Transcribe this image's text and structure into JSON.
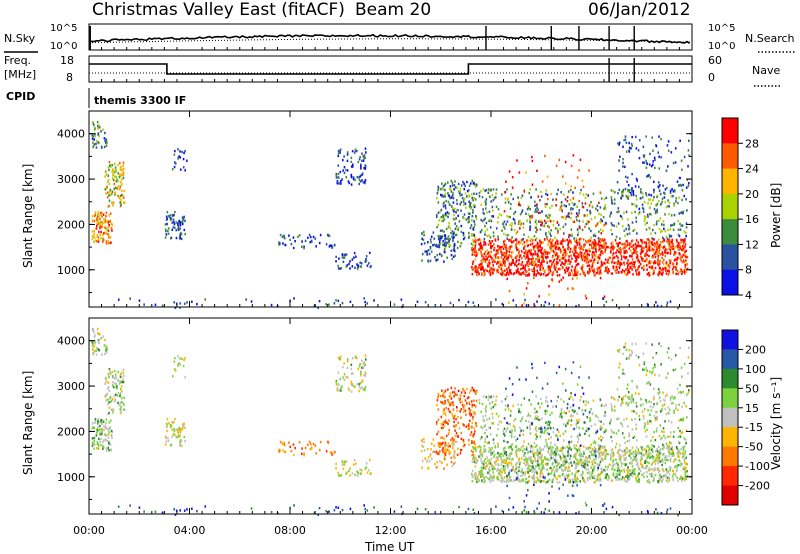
{
  "header": {
    "station": "Christmas Valley East (fitACF)",
    "beam": "Beam 20",
    "date": "06/Jan/2012"
  },
  "top_panels": {
    "nsky_label": "N.Sky",
    "nsky_ticks": [
      "10^5",
      "10^0"
    ],
    "nsearch_label": "N.Search",
    "nsearch_ticks": [
      "10^5",
      "10^0"
    ],
    "freq_label": "Freq.",
    "freq_unit": "[MHz]",
    "freq_ticks": [
      "18",
      "8"
    ],
    "nave_label": "Nave",
    "nave_ticks": [
      "60",
      "0"
    ],
    "cpid_label": "CPID",
    "cpid_value": "themis 3300 IF",
    "freq_steps": [
      {
        "t0": 0,
        "t1": 3.1,
        "mhz": 15.5
      },
      {
        "t0": 3.1,
        "t1": 15.1,
        "mhz": 10.5
      },
      {
        "t0": 15.1,
        "t1": 24,
        "mhz": 15.5
      }
    ]
  },
  "chart_data": [
    {
      "type": "heatmap",
      "title": "Power",
      "ylabel": "Slant Range [km]",
      "xlabel": "Time UT",
      "x_ticks": [
        "00:00",
        "04:00",
        "08:00",
        "12:00",
        "16:00",
        "20:00",
        "00:00"
      ],
      "y_ticks": [
        "1000",
        "2000",
        "3000",
        "4000"
      ],
      "xlim": [
        0,
        24
      ],
      "ylim": [
        180,
        4500
      ],
      "colorbar_label": "Power [dB]",
      "colorbar_ticks": [
        "28",
        "24",
        "20",
        "16",
        "12",
        "8",
        "4"
      ],
      "colorbar_colors": [
        "#ff0000",
        "#ff5a00",
        "#ffb400",
        "#a8d200",
        "#3c8c3c",
        "#2a52a0",
        "#0a10e6"
      ]
    },
    {
      "type": "heatmap",
      "title": "Velocity",
      "ylabel": "Slant Range [km]",
      "xlabel": "Time UT",
      "x_ticks": [
        "00:00",
        "04:00",
        "08:00",
        "12:00",
        "16:00",
        "20:00",
        "00:00"
      ],
      "y_ticks": [
        "1000",
        "2000",
        "3000",
        "4000"
      ],
      "xlim": [
        0,
        24
      ],
      "ylim": [
        180,
        4500
      ],
      "colorbar_label": "Velocity [m s⁻¹]",
      "colorbar_ticks": [
        "200",
        "100",
        "50",
        "15",
        "-15",
        "-50",
        "-100",
        "-200"
      ],
      "colorbar_colors": [
        "#1010e0",
        "#2858a8",
        "#2e8a2e",
        "#7cd23c",
        "#c0c0c0",
        "#ffb400",
        "#ff7800",
        "#ff2800",
        "#e00000"
      ]
    }
  ],
  "regions": [
    {
      "t0": 0.1,
      "t1": 0.9,
      "r0": 1600,
      "r1": 2300,
      "d": 0.85,
      "p": 0.7,
      "v": 0.42
    },
    {
      "t0": 0.6,
      "t1": 1.4,
      "r0": 2400,
      "r1": 3400,
      "d": 0.6,
      "p": 0.55,
      "v": 0.45
    },
    {
      "t0": 0.1,
      "t1": 0.7,
      "r0": 3700,
      "r1": 4300,
      "d": 0.6,
      "p": 0.35,
      "v": 0.45
    },
    {
      "t0": 3.0,
      "t1": 3.8,
      "r0": 1700,
      "r1": 2300,
      "d": 0.6,
      "p": 0.2,
      "v": 0.5
    },
    {
      "t0": 3.3,
      "t1": 3.9,
      "r0": 3200,
      "r1": 3700,
      "d": 0.3,
      "p": 0.15,
      "v": 0.5
    },
    {
      "t0": 7.5,
      "t1": 9.8,
      "r0": 1500,
      "r1": 1800,
      "d": 0.3,
      "p": 0.15,
      "v": 0.72
    },
    {
      "t0": 9.8,
      "t1": 11.2,
      "r0": 1000,
      "r1": 1400,
      "d": 0.35,
      "p": 0.15,
      "v": 0.5
    },
    {
      "t0": 9.8,
      "t1": 11.0,
      "r0": 2900,
      "r1": 3700,
      "d": 0.4,
      "p": 0.15,
      "v": 0.45
    },
    {
      "t0": 13.2,
      "t1": 14.6,
      "r0": 1200,
      "r1": 1900,
      "d": 0.4,
      "p": 0.2,
      "v": 0.6
    },
    {
      "t0": 13.8,
      "t1": 15.4,
      "r0": 1500,
      "r1": 3000,
      "d": 0.45,
      "p": 0.3,
      "v": 0.75
    },
    {
      "t0": 15.2,
      "t1": 23.8,
      "r0": 900,
      "r1": 1700,
      "d": 0.9,
      "p": 0.9,
      "v": 0.45
    },
    {
      "t0": 15.5,
      "t1": 23.8,
      "r0": 1700,
      "r1": 2800,
      "d": 0.25,
      "p": 0.35,
      "v": 0.45
    },
    {
      "t0": 21.0,
      "t1": 23.9,
      "r0": 2600,
      "r1": 4000,
      "d": 0.15,
      "p": 0.2,
      "v": 0.45
    },
    {
      "t0": 16.5,
      "t1": 20.5,
      "r0": 200,
      "r1": 3600,
      "d": 0.05,
      "p": 0.85,
      "v": 0.2
    },
    {
      "t0": 0.0,
      "t1": 24.0,
      "r0": 180,
      "r1": 400,
      "d": 0.06,
      "p": 0.15,
      "v": 0.15
    }
  ]
}
